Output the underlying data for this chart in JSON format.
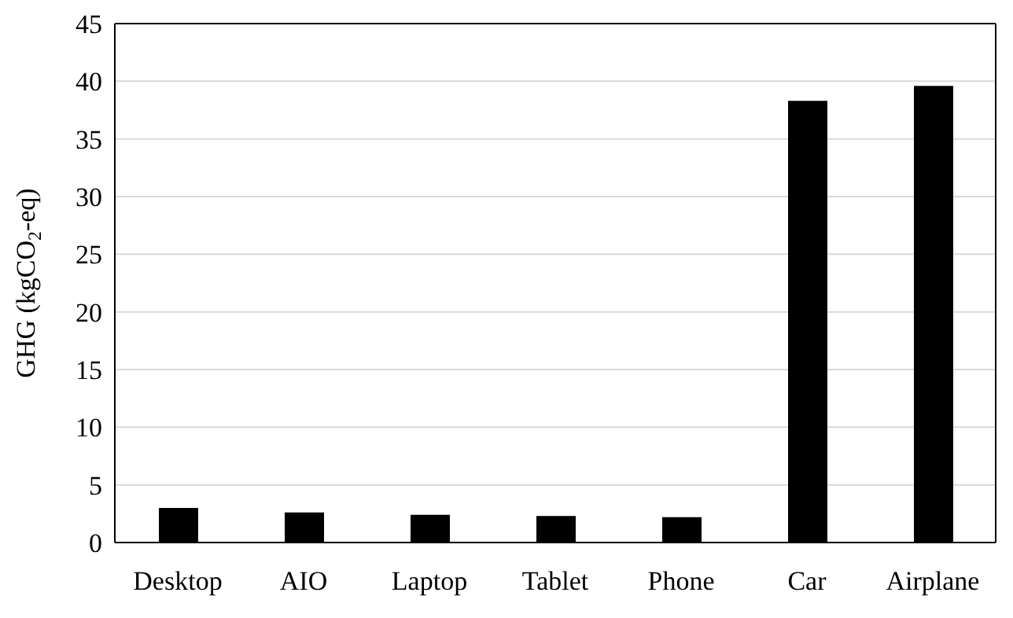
{
  "chart_data": {
    "type": "bar",
    "ylabel": "GHG (kgCO$_{2}$-eq)",
    "categories": [
      "Desktop",
      "AIO",
      "Laptop",
      "Tablet",
      "Phone",
      "Car",
      "Airplane"
    ],
    "values": [
      3.0,
      2.6,
      2.4,
      2.3,
      2.2,
      38.3,
      39.6
    ],
    "color": "#000000",
    "ylim": [
      0,
      45
    ],
    "yticks": [
      0,
      5,
      10,
      15,
      20,
      25,
      30,
      35,
      40,
      45
    ],
    "grid": "y"
  }
}
